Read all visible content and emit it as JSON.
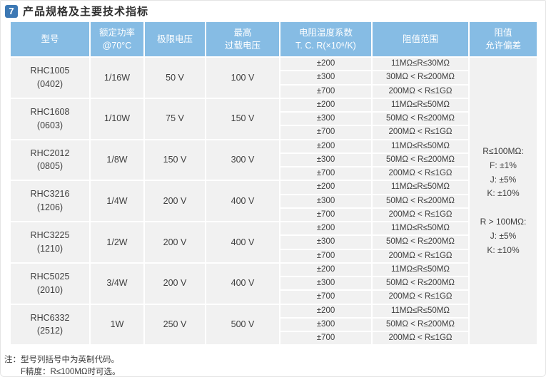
{
  "title": {
    "badge": "7",
    "text": "产品规格及主要技术指标"
  },
  "colors": {
    "header_bg": "#86bce4",
    "badge_bg": "#3c78b4",
    "cell_bg": "#f1f1f1"
  },
  "table": {
    "headers": {
      "model": "型号",
      "power": "额定功率\n@70°C",
      "limit_voltage": "极限电压",
      "overload_voltage": "最高\n过载电压",
      "tcr": "电阻温度系数\nT. C. R(×10⁶/K)",
      "range": "阻值范围",
      "tolerance": "阻值\n允许偏差"
    },
    "rows": [
      {
        "model": "RHC1005\n(0402)",
        "power": "1/16W",
        "limit_voltage": "50 V",
        "overload_voltage": "100 V",
        "tcr_rows": [
          {
            "tcr": "±200",
            "range": "11MΩ≤R≤30MΩ"
          },
          {
            "tcr": "±300",
            "range": "30MΩ < R≤200MΩ"
          },
          {
            "tcr": "±700",
            "range": "200MΩ < R≤1GΩ"
          }
        ]
      },
      {
        "model": "RHC1608\n(0603)",
        "power": "1/10W",
        "limit_voltage": "75 V",
        "overload_voltage": "150 V",
        "tcr_rows": [
          {
            "tcr": "±200",
            "range": "11MΩ≤R≤50MΩ"
          },
          {
            "tcr": "±300",
            "range": "50MΩ < R≤200MΩ"
          },
          {
            "tcr": "±700",
            "range": "200MΩ < R≤1GΩ"
          }
        ]
      },
      {
        "model": "RHC2012\n(0805)",
        "power": "1/8W",
        "limit_voltage": "150 V",
        "overload_voltage": "300 V",
        "tcr_rows": [
          {
            "tcr": "±200",
            "range": "11MΩ≤R≤50MΩ"
          },
          {
            "tcr": "±300",
            "range": "50MΩ < R≤200MΩ"
          },
          {
            "tcr": "±700",
            "range": "200MΩ < R≤1GΩ"
          }
        ]
      },
      {
        "model": "RHC3216\n(1206)",
        "power": "1/4W",
        "limit_voltage": "200 V",
        "overload_voltage": "400 V",
        "tcr_rows": [
          {
            "tcr": "±200",
            "range": "11MΩ≤R≤50MΩ"
          },
          {
            "tcr": "±300",
            "range": "50MΩ < R≤200MΩ"
          },
          {
            "tcr": "±700",
            "range": "200MΩ < R≤1GΩ"
          }
        ]
      },
      {
        "model": "RHC3225\n(1210)",
        "power": "1/2W",
        "limit_voltage": "200 V",
        "overload_voltage": "400 V",
        "tcr_rows": [
          {
            "tcr": "±200",
            "range": "11MΩ≤R≤50MΩ"
          },
          {
            "tcr": "±300",
            "range": "50MΩ < R≤200MΩ"
          },
          {
            "tcr": "±700",
            "range": "200MΩ < R≤1GΩ"
          }
        ]
      },
      {
        "model": "RHC5025\n(2010)",
        "power": "3/4W",
        "limit_voltage": "200 V",
        "overload_voltage": "400 V",
        "tcr_rows": [
          {
            "tcr": "±200",
            "range": "11MΩ≤R≤50MΩ"
          },
          {
            "tcr": "±300",
            "range": "50MΩ < R≤200MΩ"
          },
          {
            "tcr": "±700",
            "range": "200MΩ < R≤1GΩ"
          }
        ]
      },
      {
        "model": "RHC6332\n(2512)",
        "power": "1W",
        "limit_voltage": "250 V",
        "overload_voltage": "500 V",
        "tcr_rows": [
          {
            "tcr": "±200",
            "range": "11MΩ≤R≤50MΩ"
          },
          {
            "tcr": "±300",
            "range": "50MΩ < R≤200MΩ"
          },
          {
            "tcr": "±700",
            "range": "200MΩ < R≤1GΩ"
          }
        ]
      }
    ],
    "tolerance_cell": "R≤100MΩ:\nF:  ±1%\nJ:  ±5%\nK:  ±10%\n\nR > 100MΩ:\nJ:  ±5%\nK:  ±10%"
  },
  "notes": {
    "line1": "注：型号列括号中为英制代码。",
    "line2": "F精度：R≤100MΩ时可选。"
  }
}
